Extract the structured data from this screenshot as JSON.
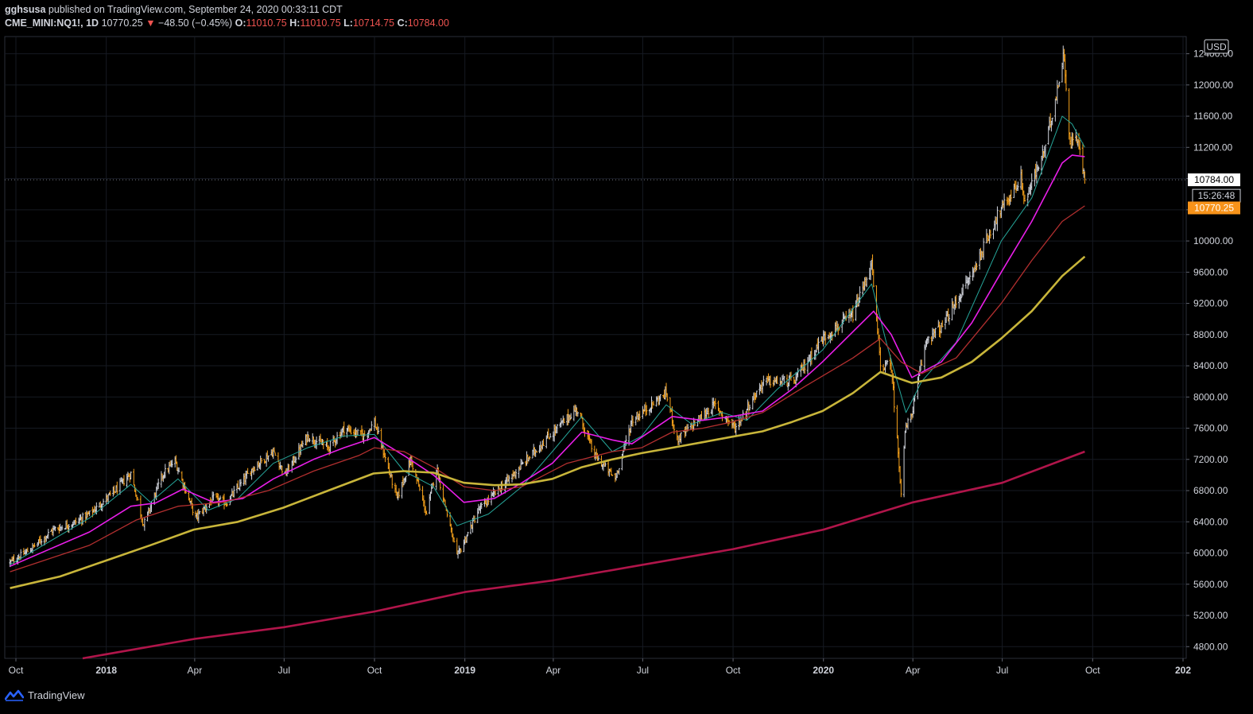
{
  "header": {
    "user": "gghsusa",
    "published": "published on TradingView.com, September 24, 2020 00:33:11 CDT",
    "symbol": "CME_MINI:NQ1!, 1D",
    "last": "10770.25",
    "arrow": "▼",
    "change": "−48.50 (−0.45%)",
    "o_label": "O:",
    "o_value": "11010.75",
    "h_label": "H:",
    "h_value": "11010.75",
    "l_label": "L:",
    "l_value": "10714.75",
    "c_label": "C:",
    "c_value": "10784.00"
  },
  "footer": {
    "brand": "TradingView"
  },
  "colors": {
    "background": "#000000",
    "up_candle": "#d1d4dc",
    "down_candle": "#f7a21b",
    "ema_fast": "#26a69a",
    "ema_mid": "#e91ee9",
    "ema_slow": "#b22f2f",
    "sma_100": "#c8b53a",
    "sma_long": "#b0154a"
  },
  "chart_data": {
    "type": "candlestick",
    "currency_label": "USD",
    "y_ticks": [
      "12400.00",
      "12000.00",
      "11600.00",
      "11200.00",
      "10800.00",
      "10400.00",
      "10000.00",
      "9600.00",
      "9200.00",
      "8800.00",
      "8400.00",
      "8000.00",
      "7600.00",
      "7200.00",
      "6800.00",
      "6400.00",
      "6000.00",
      "5600.00",
      "5200.00",
      "4800.00"
    ],
    "ylim": [
      4650,
      12620
    ],
    "x_ticks": [
      {
        "label": "Oct",
        "date": "2017-10-01"
      },
      {
        "label": "2018",
        "date": "2018-01-01",
        "bold": true
      },
      {
        "label": "Apr",
        "date": "2018-04-01"
      },
      {
        "label": "Jul",
        "date": "2018-07-01"
      },
      {
        "label": "Oct",
        "date": "2018-10-01"
      },
      {
        "label": "2019",
        "date": "2019-01-01",
        "bold": true
      },
      {
        "label": "Apr",
        "date": "2019-04-01"
      },
      {
        "label": "Jul",
        "date": "2019-07-01"
      },
      {
        "label": "Oct",
        "date": "2019-10-01"
      },
      {
        "label": "2020",
        "date": "2020-01-01",
        "bold": true
      },
      {
        "label": "Apr",
        "date": "2020-04-01"
      },
      {
        "label": "Jul",
        "date": "2020-07-01"
      },
      {
        "label": "Oct",
        "date": "2020-10-01"
      },
      {
        "label": "202",
        "date": "2021-01-01",
        "bold": true
      }
    ],
    "last_close_label": "10784.00",
    "countdown_label": "15:26:48",
    "last_price_label": "10770.25",
    "last_close": 10784,
    "last_price": 10770.25,
    "price_path": [
      [
        "2017-09-25",
        5880
      ],
      [
        "2017-10-15",
        6040
      ],
      [
        "2017-11-08",
        6300
      ],
      [
        "2017-11-28",
        6380
      ],
      [
        "2017-12-15",
        6500
      ],
      [
        "2018-01-10",
        6800
      ],
      [
        "2018-01-26",
        7020
      ],
      [
        "2018-02-08",
        6360
      ],
      [
        "2018-02-27",
        7000
      ],
      [
        "2018-03-12",
        7180
      ],
      [
        "2018-04-02",
        6450
      ],
      [
        "2018-04-20",
        6700
      ],
      [
        "2018-05-03",
        6640
      ],
      [
        "2018-05-31",
        7100
      ],
      [
        "2018-06-20",
        7300
      ],
      [
        "2018-07-02",
        7000
      ],
      [
        "2018-07-25",
        7500
      ],
      [
        "2018-08-15",
        7350
      ],
      [
        "2018-08-31",
        7600
      ],
      [
        "2018-09-20",
        7500
      ],
      [
        "2018-10-01",
        7680
      ],
      [
        "2018-10-24",
        6700
      ],
      [
        "2018-11-07",
        7200
      ],
      [
        "2018-11-23",
        6500
      ],
      [
        "2018-12-03",
        7100
      ],
      [
        "2018-12-24",
        5950
      ],
      [
        "2019-01-15",
        6550
      ],
      [
        "2019-02-15",
        6950
      ],
      [
        "2019-03-20",
        7400
      ],
      [
        "2019-04-25",
        7850
      ],
      [
        "2019-05-13",
        7250
      ],
      [
        "2019-06-03",
        6950
      ],
      [
        "2019-06-20",
        7700
      ],
      [
        "2019-07-25",
        8050
      ],
      [
        "2019-08-05",
        7450
      ],
      [
        "2019-09-12",
        7900
      ],
      [
        "2019-10-03",
        7600
      ],
      [
        "2019-11-01",
        8200
      ],
      [
        "2019-12-02",
        8200
      ],
      [
        "2019-12-31",
        8750
      ],
      [
        "2020-01-31",
        9050
      ],
      [
        "2020-02-19",
        9700
      ],
      [
        "2020-02-28",
        8400
      ],
      [
        "2020-03-10",
        8400
      ],
      [
        "2020-03-20",
        6800
      ],
      [
        "2020-03-24",
        7550
      ],
      [
        "2020-03-31",
        7800
      ],
      [
        "2020-04-15",
        8750
      ],
      [
        "2020-05-01",
        8900
      ],
      [
        "2020-06-01",
        9600
      ],
      [
        "2020-06-25",
        10300
      ],
      [
        "2020-07-20",
        10800
      ],
      [
        "2020-07-24",
        10500
      ],
      [
        "2020-08-14",
        11200
      ],
      [
        "2020-09-02",
        12400
      ],
      [
        "2020-09-08",
        11200
      ],
      [
        "2020-09-14",
        11400
      ],
      [
        "2020-09-23",
        10780
      ]
    ],
    "series": [
      {
        "name": "EMA fast",
        "role": "ema_fast",
        "points": [
          [
            "2017-09-25",
            5850
          ],
          [
            "2017-12-15",
            6450
          ],
          [
            "2018-01-26",
            6880
          ],
          [
            "2018-02-15",
            6650
          ],
          [
            "2018-03-15",
            6950
          ],
          [
            "2018-04-15",
            6550
          ],
          [
            "2018-05-15",
            6700
          ],
          [
            "2018-06-20",
            7150
          ],
          [
            "2018-07-25",
            7350
          ],
          [
            "2018-08-31",
            7500
          ],
          [
            "2018-10-01",
            7520
          ],
          [
            "2018-10-31",
            7050
          ],
          [
            "2018-11-30",
            6850
          ],
          [
            "2018-12-24",
            6350
          ],
          [
            "2019-01-25",
            6500
          ],
          [
            "2019-02-28",
            6850
          ],
          [
            "2019-03-31",
            7300
          ],
          [
            "2019-04-30",
            7750
          ],
          [
            "2019-05-31",
            7300
          ],
          [
            "2019-06-30",
            7500
          ],
          [
            "2019-07-25",
            7900
          ],
          [
            "2019-08-20",
            7650
          ],
          [
            "2019-09-20",
            7800
          ],
          [
            "2019-10-15",
            7700
          ],
          [
            "2019-11-15",
            8100
          ],
          [
            "2019-12-31",
            8600
          ],
          [
            "2020-02-19",
            9450
          ],
          [
            "2020-03-05",
            8700
          ],
          [
            "2020-03-25",
            7800
          ],
          [
            "2020-04-10",
            8200
          ],
          [
            "2020-05-15",
            8700
          ],
          [
            "2020-06-30",
            10000
          ],
          [
            "2020-07-31",
            10550
          ],
          [
            "2020-08-31",
            11600
          ],
          [
            "2020-09-10",
            11500
          ],
          [
            "2020-09-23",
            11200
          ]
        ]
      },
      {
        "name": "EMA mid",
        "role": "ema_mid",
        "points": [
          [
            "2017-09-25",
            5830
          ],
          [
            "2017-12-15",
            6270
          ],
          [
            "2018-01-26",
            6600
          ],
          [
            "2018-02-20",
            6640
          ],
          [
            "2018-03-20",
            6820
          ],
          [
            "2018-04-20",
            6650
          ],
          [
            "2018-05-20",
            6700
          ],
          [
            "2018-06-20",
            6950
          ],
          [
            "2018-07-31",
            7200
          ],
          [
            "2018-08-31",
            7350
          ],
          [
            "2018-10-01",
            7480
          ],
          [
            "2018-10-31",
            7250
          ],
          [
            "2018-11-30",
            7000
          ],
          [
            "2018-12-31",
            6650
          ],
          [
            "2019-01-31",
            6700
          ],
          [
            "2019-02-28",
            6900
          ],
          [
            "2019-03-31",
            7150
          ],
          [
            "2019-04-30",
            7550
          ],
          [
            "2019-05-31",
            7450
          ],
          [
            "2019-06-20",
            7400
          ],
          [
            "2019-07-31",
            7750
          ],
          [
            "2019-08-31",
            7700
          ],
          [
            "2019-09-30",
            7750
          ],
          [
            "2019-10-31",
            7820
          ],
          [
            "2019-11-30",
            8100
          ],
          [
            "2019-12-31",
            8450
          ],
          [
            "2020-02-21",
            9100
          ],
          [
            "2020-03-10",
            8800
          ],
          [
            "2020-03-31",
            8250
          ],
          [
            "2020-04-30",
            8450
          ],
          [
            "2020-05-31",
            8950
          ],
          [
            "2020-06-30",
            9600
          ],
          [
            "2020-07-31",
            10250
          ],
          [
            "2020-08-31",
            11000
          ],
          [
            "2020-09-10",
            11100
          ],
          [
            "2020-09-23",
            11080
          ]
        ]
      },
      {
        "name": "EMA slow",
        "role": "ema_slow",
        "points": [
          [
            "2017-09-25",
            5760
          ],
          [
            "2017-12-15",
            6100
          ],
          [
            "2018-01-31",
            6420
          ],
          [
            "2018-03-15",
            6600
          ],
          [
            "2018-04-30",
            6650
          ],
          [
            "2018-06-15",
            6800
          ],
          [
            "2018-07-31",
            7050
          ],
          [
            "2018-09-15",
            7250
          ],
          [
            "2018-10-01",
            7350
          ],
          [
            "2018-10-31",
            7300
          ],
          [
            "2018-11-30",
            7100
          ],
          [
            "2018-12-31",
            6850
          ],
          [
            "2019-01-31",
            6800
          ],
          [
            "2019-02-28",
            6850
          ],
          [
            "2019-04-15",
            7150
          ],
          [
            "2019-05-31",
            7300
          ],
          [
            "2019-06-30",
            7350
          ],
          [
            "2019-07-31",
            7550
          ],
          [
            "2019-08-31",
            7600
          ],
          [
            "2019-09-30",
            7680
          ],
          [
            "2019-10-31",
            7800
          ],
          [
            "2019-12-15",
            8150
          ],
          [
            "2020-01-31",
            8500
          ],
          [
            "2020-02-28",
            8750
          ],
          [
            "2020-03-20",
            8450
          ],
          [
            "2020-04-10",
            8300
          ],
          [
            "2020-05-15",
            8500
          ],
          [
            "2020-06-30",
            9200
          ],
          [
            "2020-07-31",
            9750
          ],
          [
            "2020-08-31",
            10250
          ],
          [
            "2020-09-23",
            10450
          ]
        ]
      },
      {
        "name": "SMA 100",
        "role": "sma_100",
        "points": [
          [
            "2017-09-25",
            5550
          ],
          [
            "2017-11-15",
            5700
          ],
          [
            "2017-12-31",
            5900
          ],
          [
            "2018-02-15",
            6100
          ],
          [
            "2018-03-31",
            6300
          ],
          [
            "2018-05-15",
            6400
          ],
          [
            "2018-06-30",
            6580
          ],
          [
            "2018-08-15",
            6800
          ],
          [
            "2018-09-30",
            7020
          ],
          [
            "2018-10-31",
            7050
          ],
          [
            "2018-11-30",
            7030
          ],
          [
            "2018-12-31",
            6900
          ],
          [
            "2019-01-31",
            6870
          ],
          [
            "2019-02-28",
            6880
          ],
          [
            "2019-03-31",
            6950
          ],
          [
            "2019-04-30",
            7100
          ],
          [
            "2019-05-31",
            7200
          ],
          [
            "2019-06-30",
            7280
          ],
          [
            "2019-07-31",
            7350
          ],
          [
            "2019-08-31",
            7420
          ],
          [
            "2019-09-30",
            7490
          ],
          [
            "2019-10-31",
            7560
          ],
          [
            "2019-11-30",
            7680
          ],
          [
            "2019-12-31",
            7820
          ],
          [
            "2020-01-31",
            8050
          ],
          [
            "2020-02-28",
            8320
          ],
          [
            "2020-03-31",
            8180
          ],
          [
            "2020-04-30",
            8250
          ],
          [
            "2020-05-31",
            8450
          ],
          [
            "2020-06-30",
            8750
          ],
          [
            "2020-07-31",
            9100
          ],
          [
            "2020-08-31",
            9550
          ],
          [
            "2020-09-23",
            9800
          ]
        ]
      },
      {
        "name": "SMA long",
        "role": "sma_long",
        "points": [
          [
            "2017-12-08",
            4650
          ],
          [
            "2018-04-01",
            4900
          ],
          [
            "2018-07-01",
            5050
          ],
          [
            "2018-10-01",
            5250
          ],
          [
            "2019-01-01",
            5500
          ],
          [
            "2019-04-01",
            5650
          ],
          [
            "2019-07-01",
            5850
          ],
          [
            "2019-10-01",
            6050
          ],
          [
            "2020-01-01",
            6300
          ],
          [
            "2020-04-01",
            6650
          ],
          [
            "2020-07-01",
            6900
          ],
          [
            "2020-09-23",
            7300
          ]
        ]
      }
    ]
  }
}
